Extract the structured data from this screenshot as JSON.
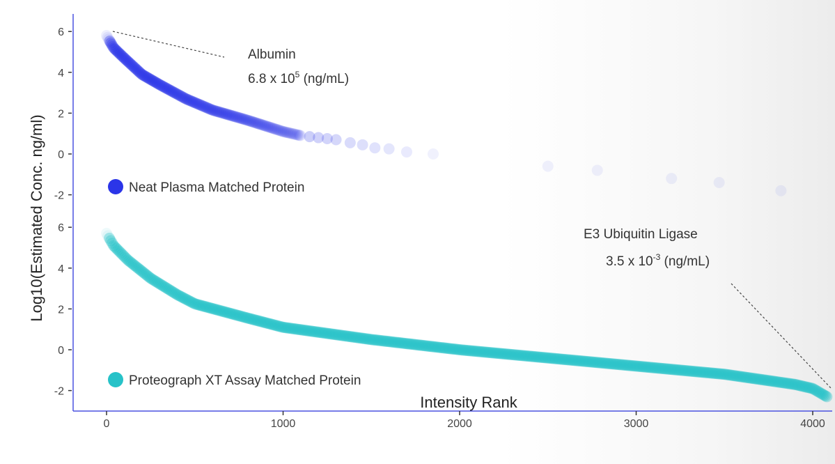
{
  "chart_data": {
    "type": "scatter",
    "title": "",
    "xlabel": "Intensity Rank",
    "ylabel": "Log10(Estimated Conc. ng/ml)",
    "xlim": [
      -190,
      4100
    ],
    "x_ticks": [
      "0",
      "1000",
      "2000",
      "3000",
      "4000"
    ],
    "x_tick_values": [
      0,
      1000,
      2000,
      3000,
      4000
    ],
    "panels": [
      {
        "name": "Neat Plasma Matched Protein",
        "color": "#2b35e8",
        "y_ticks": [
          "6",
          "4",
          "2",
          "0",
          "-2"
        ],
        "y_tick_values": [
          6,
          4,
          2,
          0,
          -2
        ],
        "ylim": [
          -2.5,
          6.5
        ],
        "dense_curve": [
          [
            0,
            5.8
          ],
          [
            40,
            5.2
          ],
          [
            100,
            4.7
          ],
          [
            200,
            3.9
          ],
          [
            300,
            3.4
          ],
          [
            450,
            2.7
          ],
          [
            600,
            2.15
          ],
          [
            800,
            1.65
          ],
          [
            1000,
            1.1
          ],
          [
            1100,
            0.9
          ]
        ],
        "sparse_points": [
          [
            1150,
            0.85
          ],
          [
            1200,
            0.8
          ],
          [
            1250,
            0.75
          ],
          [
            1300,
            0.7
          ],
          [
            1380,
            0.55
          ],
          [
            1450,
            0.45
          ],
          [
            1520,
            0.3
          ],
          [
            1600,
            0.25
          ],
          [
            1700,
            0.1
          ],
          [
            1850,
            0.0
          ],
          [
            2500,
            -0.6
          ],
          [
            2780,
            -0.8
          ],
          [
            3200,
            -1.2
          ],
          [
            3470,
            -1.4
          ],
          [
            3820,
            -1.8
          ]
        ],
        "annotation": {
          "label": "Albumin",
          "value": "6.8 x 10",
          "exponent": "5",
          "unit": " (ng/mL)",
          "point": [
            30,
            5.95
          ]
        }
      },
      {
        "name": "Proteograph XT Assay Matched Protein",
        "color": "#27c2c8",
        "y_ticks": [
          "6",
          "4",
          "2",
          "0",
          "-2"
        ],
        "y_tick_values": [
          6,
          4,
          2,
          0,
          -2
        ],
        "ylim": [
          -2.5,
          6.5
        ],
        "dense_curve": [
          [
            0,
            5.7
          ],
          [
            40,
            5.1
          ],
          [
            120,
            4.4
          ],
          [
            250,
            3.5
          ],
          [
            400,
            2.7
          ],
          [
            500,
            2.25
          ],
          [
            800,
            1.55
          ],
          [
            1000,
            1.1
          ],
          [
            1500,
            0.5
          ],
          [
            2000,
            0.0
          ],
          [
            2500,
            -0.4
          ],
          [
            3000,
            -0.8
          ],
          [
            3500,
            -1.2
          ],
          [
            3900,
            -1.7
          ],
          [
            4000,
            -1.9
          ],
          [
            4080,
            -2.3
          ]
        ],
        "sparse_points": [],
        "annotation": {
          "label": "E3 Ubiquitin Ligase",
          "value": "3.5 x 10",
          "exponent": "-3",
          "unit": " (ng/mL)",
          "point": [
            4080,
            -1.85
          ]
        }
      }
    ]
  }
}
